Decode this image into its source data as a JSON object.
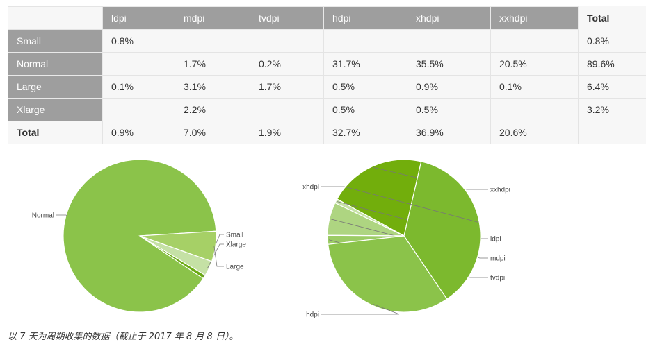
{
  "table": {
    "columns": [
      "",
      "ldpi",
      "mdpi",
      "tvdpi",
      "hdpi",
      "xhdpi",
      "xxhdpi",
      "Total"
    ],
    "rows": [
      {
        "label": "Small",
        "cells": [
          "0.8%",
          "",
          "",
          "",
          "",
          "",
          "0.8%"
        ]
      },
      {
        "label": "Normal",
        "cells": [
          "",
          "1.7%",
          "0.2%",
          "31.7%",
          "35.5%",
          "20.5%",
          "89.6%"
        ]
      },
      {
        "label": "Large",
        "cells": [
          "0.1%",
          "3.1%",
          "1.7%",
          "0.5%",
          "0.9%",
          "0.1%",
          "6.4%"
        ]
      },
      {
        "label": "Xlarge",
        "cells": [
          "",
          "2.2%",
          "",
          "0.5%",
          "0.5%",
          "",
          "3.2%"
        ]
      }
    ],
    "total_row": {
      "label": "Total",
      "cells": [
        "0.9%",
        "7.0%",
        "1.9%",
        "32.7%",
        "36.9%",
        "20.6%",
        ""
      ]
    }
  },
  "chart_data": [
    {
      "type": "pie",
      "slices": [
        {
          "label": "Normal",
          "value": 89.6,
          "color": "#8bc34a"
        },
        {
          "label": "Small",
          "value": 0.8,
          "color": "#6aaa12"
        },
        {
          "label": "Xlarge",
          "value": 3.2,
          "color": "#c5e1a5"
        },
        {
          "label": "Large",
          "value": 6.4,
          "color": "#a6d066"
        }
      ]
    },
    {
      "type": "pie",
      "slices": [
        {
          "label": "xxhdpi",
          "value": 20.6,
          "color": "#72ae0c"
        },
        {
          "label": "ldpi",
          "value": 0.9,
          "color": "#c5e1a5"
        },
        {
          "label": "mdpi",
          "value": 7.0,
          "color": "#aed581"
        },
        {
          "label": "tvdpi",
          "value": 1.9,
          "color": "#9ccc65"
        },
        {
          "label": "hdpi",
          "value": 32.7,
          "color": "#8bc34a"
        },
        {
          "label": "xhdpi",
          "value": 36.9,
          "color": "#7cb92e"
        }
      ]
    }
  ],
  "caption": "以 7 天为周期收集的数据（截止于 2017 年 8 月 8 日）。"
}
